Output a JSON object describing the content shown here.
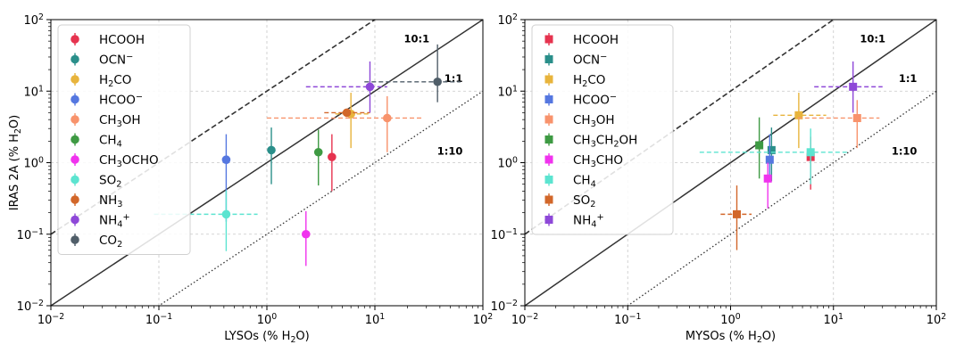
{
  "chart_data": [
    {
      "type": "scatter",
      "subtype": "log-log scatter with error bars",
      "xlabel": "LYSOs (% H₂O)",
      "ylabel": "IRAS 2A (% H₂O)",
      "xlim": [
        0.01,
        100
      ],
      "ylim": [
        0.01,
        100
      ],
      "xscale": "log",
      "yscale": "log",
      "grid": true,
      "legend_position": "upper-left",
      "marker": "circle",
      "ticks": [
        {
          "value": 0.01,
          "base": "10",
          "exp": "−2"
        },
        {
          "value": 0.1,
          "base": "10",
          "exp": "−1"
        },
        {
          "value": 1,
          "base": "10",
          "exp": "0"
        },
        {
          "value": 10,
          "base": "10",
          "exp": "1"
        },
        {
          "value": 100,
          "base": "10",
          "exp": "2"
        }
      ],
      "reference_lines": [
        {
          "label": "10:1",
          "ratio": 10,
          "style": "dashed"
        },
        {
          "label": "1:1",
          "ratio": 1,
          "style": "solid"
        },
        {
          "label": "1:10",
          "ratio": 0.1,
          "style": "dotted"
        }
      ],
      "series": [
        {
          "name": "HCOOH",
          "label": [
            {
              "t": "HCOOH"
            }
          ],
          "color": "#e6334f",
          "x": 4.0,
          "y": 1.2,
          "xerr": [
            null,
            null
          ],
          "yerr": [
            0.4,
            2.5
          ]
        },
        {
          "name": "OCN⁻",
          "label": [
            {
              "t": "OCN"
            },
            {
              "t": "−",
              "sup": true
            }
          ],
          "color": "#2a8f8a",
          "x": 1.1,
          "y": 1.5,
          "xerr": [
            null,
            null
          ],
          "yerr": [
            0.5,
            3.1
          ]
        },
        {
          "name": "H₂CO",
          "label": [
            {
              "t": "H"
            },
            {
              "t": "2",
              "sub": true
            },
            {
              "t": "CO"
            }
          ],
          "color": "#e8b43c",
          "x": 6.0,
          "y": 4.8,
          "xerr": [
            4.3,
            8.8
          ],
          "yerr": [
            1.6,
            9.5
          ]
        },
        {
          "name": "HCOO⁻",
          "label": [
            {
              "t": "HCOO"
            },
            {
              "t": "−",
              "sup": true
            }
          ],
          "color": "#5577e0",
          "x": 0.42,
          "y": 1.1,
          "xerr": [
            null,
            null
          ],
          "yerr": [
            0.15,
            2.5
          ]
        },
        {
          "name": "CH₃OH",
          "label": [
            {
              "t": "CH"
            },
            {
              "t": "3",
              "sub": true
            },
            {
              "t": "OH"
            }
          ],
          "color": "#f8936c",
          "x": 13.0,
          "y": 4.2,
          "xerr": [
            1.0,
            27.0
          ],
          "yerr": [
            1.4,
            8.5
          ]
        },
        {
          "name": "CH₄",
          "label": [
            {
              "t": "CH"
            },
            {
              "t": "4",
              "sub": true
            }
          ],
          "color": "#3e9a43",
          "x": 3.0,
          "y": 1.4,
          "xerr": [
            null,
            null
          ],
          "yerr": [
            0.48,
            2.9
          ]
        },
        {
          "name": "CH₃OCHO",
          "label": [
            {
              "t": "CH"
            },
            {
              "t": "3",
              "sub": true
            },
            {
              "t": "OCHO"
            }
          ],
          "color": "#f033ee",
          "x": 2.3,
          "y": 0.1,
          "xerr": [
            null,
            null
          ],
          "yerr": [
            0.036,
            0.21
          ]
        },
        {
          "name": "SO₂",
          "label": [
            {
              "t": "SO"
            },
            {
              "t": "2",
              "sub": true
            }
          ],
          "color": "#5ce4d0",
          "x": 0.42,
          "y": 0.19,
          "xerr": [
            0.09,
            0.82
          ],
          "yerr": [
            0.058,
            0.41
          ]
        },
        {
          "name": "NH₃",
          "label": [
            {
              "t": "NH"
            },
            {
              "t": "3",
              "sub": true
            }
          ],
          "color": "#d2672a",
          "x": 5.5,
          "y": 5.0,
          "xerr": [
            3.4,
            9.0
          ],
          "yerr": [
            null,
            null
          ]
        },
        {
          "name": "NH₄⁺",
          "label": [
            {
              "t": "NH"
            },
            {
              "t": "4",
              "sub": true
            },
            {
              "t": "+",
              "sup": true
            }
          ],
          "color": "#8e48d8",
          "x": 9.0,
          "y": 11.5,
          "xerr": [
            2.3,
            13.0
          ],
          "yerr": [
            5.0,
            26.0
          ]
        },
        {
          "name": "CO₂",
          "label": [
            {
              "t": "CO"
            },
            {
              "t": "2",
              "sub": true
            }
          ],
          "color": "#505e69",
          "x": 38.0,
          "y": 13.5,
          "xerr": [
            8.0,
            62.0
          ],
          "yerr": [
            7.0,
            45.0
          ]
        }
      ]
    },
    {
      "type": "scatter",
      "subtype": "log-log scatter with error bars",
      "xlabel": "MYSOs (% H₂O)",
      "ylabel": "",
      "xlim": [
        0.01,
        100
      ],
      "ylim": [
        0.01,
        100
      ],
      "xscale": "log",
      "yscale": "log",
      "grid": true,
      "legend_position": "upper-left",
      "marker": "square",
      "ticks": [
        {
          "value": 0.01,
          "base": "10",
          "exp": "−2"
        },
        {
          "value": 0.1,
          "base": "10",
          "exp": "−1"
        },
        {
          "value": 1,
          "base": "10",
          "exp": "0"
        },
        {
          "value": 10,
          "base": "10",
          "exp": "1"
        },
        {
          "value": 100,
          "base": "10",
          "exp": "2"
        }
      ],
      "reference_lines": [
        {
          "label": "10:1",
          "ratio": 10,
          "style": "dashed"
        },
        {
          "label": "1:1",
          "ratio": 1,
          "style": "solid"
        },
        {
          "label": "1:10",
          "ratio": 0.1,
          "style": "dotted"
        }
      ],
      "series": [
        {
          "name": "HCOOH",
          "label": [
            {
              "t": "HCOOH"
            }
          ],
          "color": "#e6334f",
          "x": 6.0,
          "y": 1.2,
          "xerr": [
            null,
            null
          ],
          "yerr": [
            0.42,
            2.3
          ]
        },
        {
          "name": "OCN⁻",
          "label": [
            {
              "t": "OCN"
            },
            {
              "t": "−",
              "sup": true
            }
          ],
          "color": "#2a8f8a",
          "x": 2.5,
          "y": 1.5,
          "xerr": [
            null,
            null
          ],
          "yerr": [
            0.55,
            3.1
          ]
        },
        {
          "name": "H₂CO",
          "label": [
            {
              "t": "H"
            },
            {
              "t": "2",
              "sub": true
            },
            {
              "t": "CO"
            }
          ],
          "color": "#e8b43c",
          "x": 4.6,
          "y": 4.6,
          "xerr": [
            2.6,
            8.5
          ],
          "yerr": [
            1.6,
            9.5
          ]
        },
        {
          "name": "HCOO⁻",
          "label": [
            {
              "t": "HCOO"
            },
            {
              "t": "−",
              "sup": true
            }
          ],
          "color": "#5577e0",
          "x": 2.4,
          "y": 1.1,
          "xerr": [
            null,
            null
          ],
          "yerr": [
            0.6,
            2.5
          ]
        },
        {
          "name": "CH₃OH",
          "label": [
            {
              "t": "CH"
            },
            {
              "t": "3",
              "sub": true
            },
            {
              "t": "OH"
            }
          ],
          "color": "#f8936c",
          "x": 17.0,
          "y": 4.2,
          "xerr": [
            4.5,
            28.0
          ],
          "yerr": [
            1.6,
            7.5
          ]
        },
        {
          "name": "CH₃CH₂OH",
          "label": [
            {
              "t": "CH"
            },
            {
              "t": "3",
              "sub": true
            },
            {
              "t": "CH"
            },
            {
              "t": "2",
              "sub": true
            },
            {
              "t": "OH"
            }
          ],
          "color": "#3e9a43",
          "x": 1.9,
          "y": 1.75,
          "xerr": [
            null,
            null
          ],
          "yerr": [
            0.6,
            4.3
          ]
        },
        {
          "name": "CH₃CHO",
          "label": [
            {
              "t": "CH"
            },
            {
              "t": "3",
              "sub": true
            },
            {
              "t": "CHO"
            }
          ],
          "color": "#f033ee",
          "x": 2.3,
          "y": 0.6,
          "xerr": [
            null,
            null
          ],
          "yerr": [
            0.23,
            1.0
          ]
        },
        {
          "name": "CH₄",
          "label": [
            {
              "t": "CH"
            },
            {
              "t": "4",
              "sub": true
            }
          ],
          "color": "#5ce4d0",
          "x": 6.0,
          "y": 1.4,
          "xerr": [
            0.5,
            14.0
          ],
          "yerr": [
            0.5,
            3.0
          ]
        },
        {
          "name": "SO₂",
          "label": [
            {
              "t": "SO"
            },
            {
              "t": "2",
              "sub": true
            }
          ],
          "color": "#d2672a",
          "x": 1.15,
          "y": 0.19,
          "xerr": [
            0.8,
            1.6
          ],
          "yerr": [
            0.06,
            0.48
          ]
        },
        {
          "name": "NH₄⁺",
          "label": [
            {
              "t": "NH"
            },
            {
              "t": "4",
              "sub": true
            },
            {
              "t": "+",
              "sup": true
            }
          ],
          "color": "#8e48d8",
          "x": 15.5,
          "y": 11.5,
          "xerr": [
            6.5,
            30.0
          ],
          "yerr": [
            5.0,
            26.0
          ]
        }
      ]
    }
  ]
}
